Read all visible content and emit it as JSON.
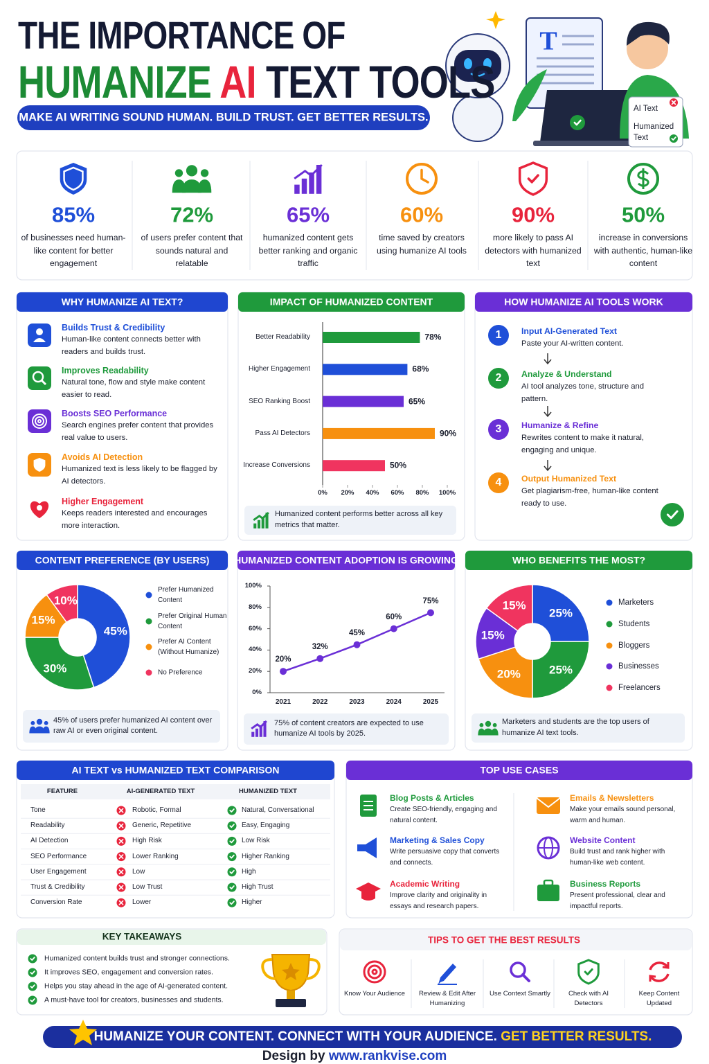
{
  "header": {
    "title_line1": "THE IMPORTANCE OF",
    "title_word1": "HUMANIZE",
    "title_word2": "AI",
    "title_word3": "TEXT TOOLS",
    "tagline": "MAKE AI WRITING SOUND HUMAN. BUILD TRUST. GET BETTER RESULTS."
  },
  "illustration": {
    "doc_letter": "T",
    "card_top": "AI Text",
    "card_bottom": "Humanized Text"
  },
  "stats": [
    {
      "value": "85%",
      "text": "of businesses need human-like content for better engagement"
    },
    {
      "value": "72%",
      "text": "of users prefer content that sounds natural and relatable"
    },
    {
      "value": "65%",
      "text": "humanized content gets better ranking and organic traffic"
    },
    {
      "value": "60%",
      "text": "time saved by creators using humanize AI tools"
    },
    {
      "value": "90%",
      "text": "more likely to pass AI detectors with humanized text"
    },
    {
      "value": "50%",
      "text": "increase in conversions with authentic, human-like content"
    }
  ],
  "why": {
    "title": "WHY HUMANIZE AI TEXT?",
    "items": [
      {
        "title": "Builds Trust & Credibility",
        "text": "Human-like content connects better with readers and builds trust."
      },
      {
        "title": "Improves Readability",
        "text": "Natural tone, flow and style make content easier to read."
      },
      {
        "title": "Boosts SEO Performance",
        "text": "Search engines prefer content that provides real value to users."
      },
      {
        "title": "Avoids AI Detection",
        "text": "Humanized text is less likely to be flagged by AI detectors."
      },
      {
        "title": "Higher Engagement",
        "text": "Keeps readers interested and encourages more interaction."
      }
    ]
  },
  "how": {
    "title": "HOW HUMANIZE AI TOOLS WORK",
    "steps": [
      {
        "number": 1,
        "title": "Input AI-Generated Text",
        "text": "Paste your AI-written content."
      },
      {
        "number": 2,
        "title": "Analyze & Understand",
        "text": "AI tool analyzes tone, structure and pattern."
      },
      {
        "number": 3,
        "title": "Humanize & Refine",
        "text": "Rewrites content to make it natural, engaging and unique."
      },
      {
        "number": 4,
        "title": "Output Humanized Text",
        "text": "Get plagiarism-free, human-like content ready to use."
      }
    ]
  },
  "chart_data": [
    {
      "type": "bar",
      "orientation": "horizontal",
      "title": "IMPACT OF HUMANIZED CONTENT",
      "categories": [
        "Better Readability",
        "Higher Engagement",
        "SEO Ranking Boost",
        "Pass AI Detectors",
        "Increase Conversions"
      ],
      "values": [
        78,
        68,
        65,
        90,
        50
      ],
      "value_labels": [
        "78%",
        "68%",
        "65%",
        "90%",
        "50%"
      ],
      "colors": [
        "#1f9a3c",
        "#1f4fd8",
        "#6a2fd6",
        "#f7900f",
        "#f0345f"
      ],
      "xlim": [
        0,
        100
      ],
      "xticks": [
        {
          "value": 0,
          "label": "0%"
        },
        {
          "value": 20,
          "label": "20%"
        },
        {
          "value": 40,
          "label": "40%"
        },
        {
          "value": 60,
          "label": "60%"
        },
        {
          "value": 80,
          "label": "80%"
        },
        {
          "value": 100,
          "label": "100%"
        }
      ],
      "note": "Humanized content performs better across all key metrics that matter."
    },
    {
      "type": "pie",
      "donut": true,
      "title": "CONTENT PREFERENCE (BY USERS)",
      "categories": [
        "Prefer Humanized Content",
        "Prefer Original Human Content",
        "Prefer AI Content (Without Humanize)",
        "No Preference"
      ],
      "values": [
        45,
        30,
        15,
        10
      ],
      "value_labels": [
        "45%",
        "30%",
        "15%",
        "10%"
      ],
      "colors": [
        "#1f4fd8",
        "#1f9a3c",
        "#f7900f",
        "#f0345f"
      ],
      "note": "45% of users prefer humanized AI content over raw AI or even original content."
    },
    {
      "type": "line",
      "title": "HUMANIZED CONTENT ADOPTION IS GROWING",
      "x": [
        2021,
        2022,
        2023,
        2024,
        2025
      ],
      "xlim": [
        2021,
        2025
      ],
      "values": [
        20,
        32,
        45,
        60,
        75
      ],
      "value_labels": [
        "20%",
        "32%",
        "45%",
        "60%",
        "75%"
      ],
      "color": "#6a2fd6",
      "ylim": [
        0,
        100
      ],
      "yticks": [
        {
          "value": 0,
          "label": "0%"
        },
        {
          "value": 20,
          "label": "20%"
        },
        {
          "value": 40,
          "label": "40%"
        },
        {
          "value": 60,
          "label": "60%"
        },
        {
          "value": 80,
          "label": "80%"
        },
        {
          "value": 100,
          "label": "100%"
        }
      ],
      "note": "75% of content creators are expected to use humanize AI tools by 2025."
    },
    {
      "type": "pie",
      "donut": true,
      "title": "WHO BENEFITS THE MOST?",
      "categories": [
        "Marketers",
        "Students",
        "Bloggers",
        "Businesses",
        "Freelancers"
      ],
      "values": [
        25,
        25,
        20,
        15,
        15
      ],
      "value_labels": [
        "25%",
        "25%",
        "20%",
        "15%",
        "15%"
      ],
      "colors": [
        "#1f4fd8",
        "#1f9a3c",
        "#f7900f",
        "#6a2fd6",
        "#f0345f"
      ],
      "note": "Marketers and students are the top users of humanize AI text tools."
    }
  ],
  "comparison": {
    "title": "AI TEXT vs HUMANIZED TEXT COMPARISON",
    "headers": [
      "FEATURE",
      "AI-GENERATED TEXT",
      "HUMANIZED TEXT"
    ],
    "rows": [
      [
        "Tone",
        "Robotic, Formal",
        "Natural, Conversational"
      ],
      [
        "Readability",
        "Generic, Repetitive",
        "Easy, Engaging"
      ],
      [
        "AI Detection",
        "High Risk",
        "Low Risk"
      ],
      [
        "SEO Performance",
        "Lower Ranking",
        "Higher Ranking"
      ],
      [
        "User Engagement",
        "Low",
        "High"
      ],
      [
        "Trust & Credibility",
        "Low Trust",
        "High Trust"
      ],
      [
        "Conversion Rate",
        "Lower",
        "Higher"
      ]
    ]
  },
  "use_cases": {
    "title": "TOP USE CASES",
    "items": [
      {
        "title": "Blog Posts & Articles",
        "text": "Create SEO-friendly, engaging and natural content."
      },
      {
        "title": "Emails & Newsletters",
        "text": "Make your emails sound personal, warm and human."
      },
      {
        "title": "Marketing & Sales Copy",
        "text": "Write persuasive copy that converts and connects."
      },
      {
        "title": "Website Content",
        "text": "Build trust and rank higher with human-like web content."
      },
      {
        "title": "Academic Writing",
        "text": "Improve clarity and originality in essays and research papers."
      },
      {
        "title": "Business Reports",
        "text": "Present professional, clear and impactful reports."
      }
    ]
  },
  "takeaways": {
    "title": "KEY TAKEAWAYS",
    "items": [
      "Humanized content builds trust and stronger connections.",
      "It improves SEO, engagement and conversion rates.",
      "Helps you stay ahead in the age of AI-generated content.",
      "A must-have tool for creators, businesses and students."
    ]
  },
  "tips": {
    "title": "TIPS TO GET THE BEST RESULTS",
    "items": [
      "Know Your Audience",
      "Review & Edit After Humanizing",
      "Use Context Smartly",
      "Check with AI Detectors",
      "Keep Content Updated"
    ]
  },
  "footer": {
    "banner_main": "HUMANIZE YOUR CONTENT. CONNECT WITH YOUR AUDIENCE.",
    "banner_accent": "GET BETTER RESULTS.",
    "credit_label": "Design by",
    "credit_site": "www.rankvise.com"
  }
}
